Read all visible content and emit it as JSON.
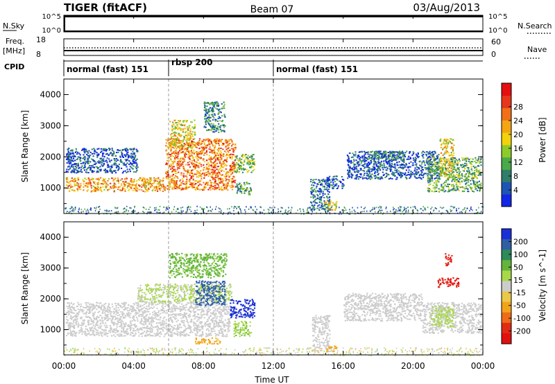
{
  "header": {
    "station": "TIGER (fitACF)",
    "beam": "Beam 07",
    "date": "03/Aug/2013"
  },
  "strips": {
    "nsky": {
      "label": "N.Sky",
      "ticks": [
        "10^5",
        "10^0"
      ]
    },
    "nsearch": {
      "label": "N.Search",
      "ticks": [
        "10^5",
        "10^0"
      ]
    },
    "freq": {
      "label_line1": "Freq.",
      "label_line2": "[MHz]",
      "ticks": [
        "18",
        "8"
      ]
    },
    "nave": {
      "label": "Nave",
      "ticks": [
        "60",
        "0"
      ]
    },
    "cpid": {
      "label": "CPID"
    }
  },
  "cpid_segments": [
    {
      "label": "normal (fast) 151",
      "start_hour": 0,
      "end_hour": 6
    },
    {
      "label": "rbsp 200",
      "start_hour": 6,
      "end_hour": 12
    },
    {
      "label": "normal (fast) 151",
      "start_hour": 12,
      "end_hour": 24
    }
  ],
  "x_axis": {
    "label": "Time UT",
    "ticks": [
      "00:00",
      "04:00",
      "08:00",
      "12:00",
      "16:00",
      "20:00",
      "00:00"
    ]
  },
  "chart_data": [
    {
      "type": "heatmap",
      "ylabel": "Slant Range [km]",
      "y_ticks": [
        "1000",
        "2000",
        "3000",
        "4000"
      ],
      "ylim": [
        180,
        4500
      ],
      "xlim_hours": [
        0,
        24
      ],
      "colorbar": {
        "label": "Power [dB]",
        "ticks": [
          "4",
          "8",
          "12",
          "16",
          "20",
          "24",
          "28"
        ],
        "colors": [
          "#1226e6",
          "#1e54b4",
          "#2f7d6a",
          "#4aaa48",
          "#8ccb2a",
          "#f2d20a",
          "#f5a514",
          "#f07018",
          "#e8361c",
          "#e50f0f"
        ]
      },
      "features": [
        {
          "t0": 0.1,
          "t1": 5.8,
          "r0": 900,
          "r1": 1350,
          "level": 22
        },
        {
          "t0": 5.8,
          "t1": 9.8,
          "r0": 950,
          "r1": 2600,
          "level": 24
        },
        {
          "t0": 0.1,
          "t1": 4.2,
          "r0": 1500,
          "r1": 2300,
          "level": 6
        },
        {
          "t0": 9.7,
          "t1": 10.9,
          "r0": 1500,
          "r1": 2100,
          "level": 14
        },
        {
          "t0": 9.8,
          "t1": 10.7,
          "r0": 800,
          "r1": 1200,
          "level": 12
        },
        {
          "t0": 8.0,
          "t1": 9.2,
          "r0": 2800,
          "r1": 3800,
          "level": 10
        },
        {
          "t0": 6.0,
          "t1": 7.5,
          "r0": 2300,
          "r1": 3200,
          "level": 18
        },
        {
          "t0": 14.1,
          "t1": 15.2,
          "r0": 300,
          "r1": 1300,
          "level": 8
        },
        {
          "t0": 14.9,
          "t1": 15.6,
          "r0": 300,
          "r1": 600,
          "level": 20
        },
        {
          "t0": 15.0,
          "t1": 16.0,
          "r0": 1000,
          "r1": 1400,
          "level": 6
        },
        {
          "t0": 16.2,
          "t1": 21.5,
          "r0": 1300,
          "r1": 2200,
          "level": 6
        },
        {
          "t0": 17.5,
          "t1": 19.5,
          "r0": 1900,
          "r1": 2200,
          "level": 10
        },
        {
          "t0": 20.8,
          "t1": 23.9,
          "r0": 900,
          "r1": 2000,
          "level": 13
        },
        {
          "t0": 21.5,
          "t1": 22.3,
          "r0": 1400,
          "r1": 2600,
          "level": 18
        }
      ]
    },
    {
      "type": "heatmap",
      "ylabel": "Slant Range [km]",
      "y_ticks": [
        "1000",
        "2000",
        "3000",
        "4000"
      ],
      "ylim": [
        180,
        4500
      ],
      "xlim_hours": [
        0,
        24
      ],
      "colorbar": {
        "label": "Velocity [m s^-1]",
        "ticks": [
          "200",
          "100",
          "50",
          "15",
          "-15",
          "-50",
          "-100",
          "-200"
        ],
        "colors": [
          "#1b2fd6",
          "#2f5ea5",
          "#2d8a5a",
          "#63b53a",
          "#a8d84a",
          "#cccccc",
          "#e9c84a",
          "#f2a31c",
          "#ee6c16",
          "#e22b14",
          "#e10f0f"
        ]
      },
      "features": [
        {
          "t0": 0.1,
          "t1": 9.5,
          "r0": 800,
          "r1": 1900,
          "velocity": 0
        },
        {
          "t0": 4.2,
          "t1": 9.6,
          "r0": 1900,
          "r1": 2500,
          "velocity": 20
        },
        {
          "t0": 6.0,
          "t1": 9.3,
          "r0": 2700,
          "r1": 3500,
          "velocity": 60
        },
        {
          "t0": 7.5,
          "t1": 9.2,
          "r0": 1800,
          "r1": 2600,
          "velocity": 150
        },
        {
          "t0": 9.5,
          "t1": 10.9,
          "r0": 1400,
          "r1": 2000,
          "velocity": 220
        },
        {
          "t0": 9.7,
          "t1": 10.7,
          "r0": 800,
          "r1": 1300,
          "velocity": 40
        },
        {
          "t0": 7.5,
          "t1": 9.0,
          "r0": 550,
          "r1": 750,
          "velocity": -60
        },
        {
          "t0": 14.2,
          "t1": 15.2,
          "r0": 300,
          "r1": 1500,
          "velocity": 0
        },
        {
          "t0": 15.0,
          "t1": 15.6,
          "r0": 300,
          "r1": 500,
          "velocity": -60
        },
        {
          "t0": 16.0,
          "t1": 20.5,
          "r0": 1300,
          "r1": 2200,
          "velocity": 0
        },
        {
          "t0": 20.5,
          "t1": 23.9,
          "r0": 900,
          "r1": 1900,
          "velocity": 0
        },
        {
          "t0": 21.0,
          "t1": 22.3,
          "r0": 1100,
          "r1": 1800,
          "velocity": 25
        },
        {
          "t0": 21.4,
          "t1": 22.6,
          "r0": 2400,
          "r1": 2700,
          "velocity": -200
        },
        {
          "t0": 21.8,
          "t1": 22.2,
          "r0": 3100,
          "r1": 3500,
          "velocity": -200
        }
      ]
    }
  ]
}
